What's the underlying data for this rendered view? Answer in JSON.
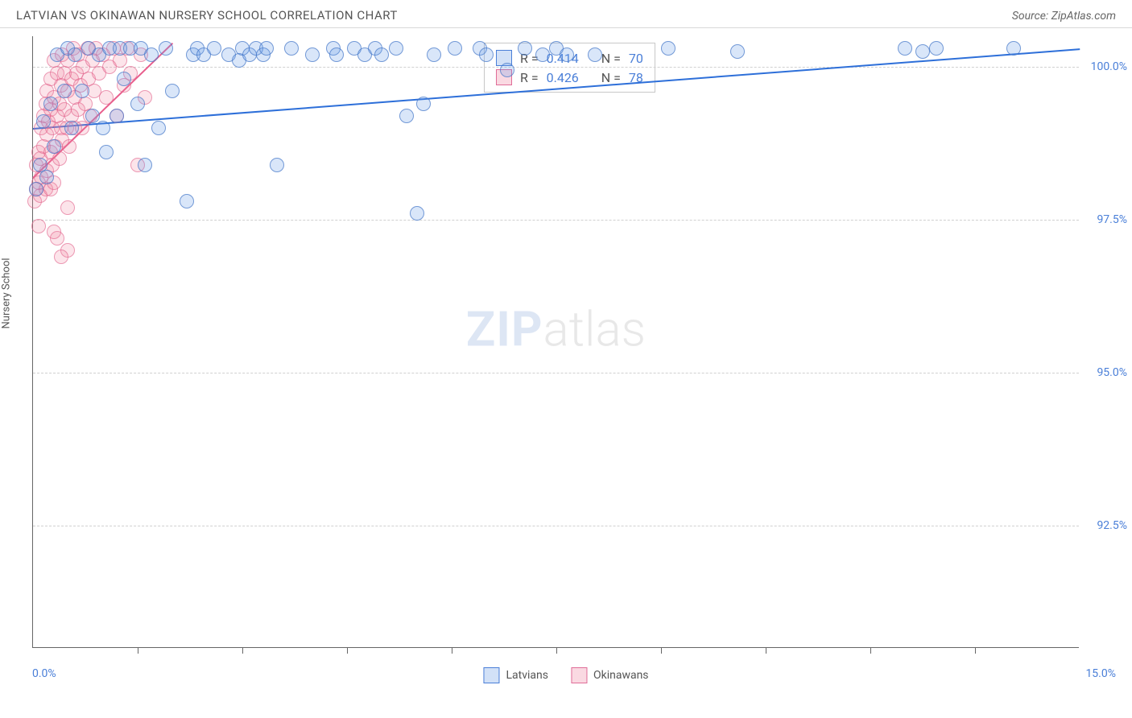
{
  "header": {
    "title": "LATVIAN VS OKINAWAN NURSERY SCHOOL CORRELATION CHART",
    "source": "Source: ZipAtlas.com"
  },
  "chart": {
    "y_axis_title": "Nursery School",
    "x_min_label": "0.0%",
    "x_max_label": "15.0%",
    "xlim": [
      0,
      15
    ],
    "ylim": [
      90.5,
      100.5
    ],
    "y_ticks": [
      {
        "value": 100.0,
        "label": "100.0%"
      },
      {
        "value": 97.5,
        "label": "97.5%"
      },
      {
        "value": 95.0,
        "label": "95.0%"
      },
      {
        "value": 92.5,
        "label": "92.5%"
      }
    ],
    "x_tick_positions": [
      1.5,
      3.0,
      4.5,
      6.0,
      7.5,
      9.0,
      10.5,
      12.0,
      13.5
    ],
    "grid_color": "#d0d0d0",
    "background_color": "#ffffff",
    "marker_radius": 9,
    "series": {
      "latvians": {
        "label": "Latvians",
        "color_fill": "rgba(105,155,230,0.25)",
        "color_stroke": "#4a7fd8",
        "r_value": "0.414",
        "n_value": "70",
        "trend": {
          "x1": 0.0,
          "y1": 99.0,
          "x2": 15.0,
          "y2": 100.3,
          "color": "#2d6fd9",
          "width": 2
        },
        "points": [
          [
            0.05,
            98.0
          ],
          [
            0.1,
            98.4
          ],
          [
            0.15,
            99.1
          ],
          [
            0.2,
            98.2
          ],
          [
            0.25,
            99.4
          ],
          [
            0.3,
            98.7
          ],
          [
            0.35,
            100.2
          ],
          [
            0.45,
            99.6
          ],
          [
            0.5,
            100.3
          ],
          [
            0.55,
            99.0
          ],
          [
            0.6,
            100.2
          ],
          [
            0.7,
            99.6
          ],
          [
            0.8,
            100.3
          ],
          [
            0.85,
            99.2
          ],
          [
            0.95,
            100.2
          ],
          [
            1.0,
            99.0
          ],
          [
            1.05,
            98.6
          ],
          [
            1.1,
            100.3
          ],
          [
            1.2,
            99.2
          ],
          [
            1.25,
            100.3
          ],
          [
            1.3,
            99.8
          ],
          [
            1.4,
            100.3
          ],
          [
            1.5,
            99.4
          ],
          [
            1.55,
            100.3
          ],
          [
            1.6,
            98.4
          ],
          [
            1.7,
            100.2
          ],
          [
            1.8,
            99.0
          ],
          [
            1.9,
            100.3
          ],
          [
            2.0,
            99.6
          ],
          [
            2.2,
            97.8
          ],
          [
            2.3,
            100.2
          ],
          [
            2.35,
            100.3
          ],
          [
            2.45,
            100.2
          ],
          [
            2.6,
            100.3
          ],
          [
            2.8,
            100.2
          ],
          [
            2.95,
            100.1
          ],
          [
            3.0,
            100.3
          ],
          [
            3.1,
            100.2
          ],
          [
            3.2,
            100.3
          ],
          [
            3.3,
            100.2
          ],
          [
            3.35,
            100.3
          ],
          [
            3.5,
            98.4
          ],
          [
            3.7,
            100.3
          ],
          [
            4.0,
            100.2
          ],
          [
            4.3,
            100.3
          ],
          [
            4.35,
            100.2
          ],
          [
            4.6,
            100.3
          ],
          [
            4.75,
            100.2
          ],
          [
            4.9,
            100.3
          ],
          [
            5.0,
            100.2
          ],
          [
            5.2,
            100.3
          ],
          [
            5.35,
            99.2
          ],
          [
            5.5,
            97.6
          ],
          [
            5.6,
            99.4
          ],
          [
            5.75,
            100.2
          ],
          [
            6.05,
            100.3
          ],
          [
            6.4,
            100.3
          ],
          [
            6.8,
            99.95
          ],
          [
            7.05,
            100.3
          ],
          [
            7.3,
            100.2
          ],
          [
            7.5,
            100.3
          ],
          [
            7.65,
            100.2
          ],
          [
            8.05,
            100.2
          ],
          [
            9.1,
            100.3
          ],
          [
            10.1,
            100.25
          ],
          [
            12.5,
            100.3
          ],
          [
            12.75,
            100.25
          ],
          [
            12.95,
            100.3
          ],
          [
            14.05,
            100.3
          ],
          [
            6.5,
            100.2
          ]
        ]
      },
      "okinawans": {
        "label": "Okinawans",
        "color_fill": "rgba(240,130,160,0.22)",
        "color_stroke": "#e06d98",
        "r_value": "0.426",
        "n_value": "78",
        "trend": {
          "x1": 0.0,
          "y1": 98.2,
          "x2": 2.0,
          "y2": 100.4,
          "color": "#e85d8c",
          "width": 2
        },
        "points": [
          [
            0.02,
            97.8
          ],
          [
            0.05,
            98.0
          ],
          [
            0.05,
            98.4
          ],
          [
            0.08,
            98.1
          ],
          [
            0.08,
            98.6
          ],
          [
            0.1,
            97.9
          ],
          [
            0.1,
            98.5
          ],
          [
            0.12,
            99.0
          ],
          [
            0.12,
            98.2
          ],
          [
            0.15,
            98.7
          ],
          [
            0.15,
            99.2
          ],
          [
            0.18,
            98.0
          ],
          [
            0.18,
            99.4
          ],
          [
            0.2,
            98.3
          ],
          [
            0.2,
            99.6
          ],
          [
            0.2,
            98.9
          ],
          [
            0.22,
            99.1
          ],
          [
            0.25,
            98.0
          ],
          [
            0.25,
            98.6
          ],
          [
            0.25,
            99.3
          ],
          [
            0.25,
            99.8
          ],
          [
            0.28,
            98.4
          ],
          [
            0.28,
            99.0
          ],
          [
            0.3,
            98.1
          ],
          [
            0.3,
            99.5
          ],
          [
            0.3,
            100.1
          ],
          [
            0.32,
            98.7
          ],
          [
            0.35,
            99.2
          ],
          [
            0.35,
            99.9
          ],
          [
            0.38,
            98.5
          ],
          [
            0.38,
            99.4
          ],
          [
            0.4,
            99.0
          ],
          [
            0.4,
            99.7
          ],
          [
            0.42,
            98.8
          ],
          [
            0.42,
            100.2
          ],
          [
            0.45,
            99.3
          ],
          [
            0.45,
            99.9
          ],
          [
            0.48,
            99.0
          ],
          [
            0.5,
            99.6
          ],
          [
            0.5,
            100.1
          ],
          [
            0.52,
            98.7
          ],
          [
            0.55,
            99.2
          ],
          [
            0.55,
            99.8
          ],
          [
            0.58,
            100.3
          ],
          [
            0.6,
            99.0
          ],
          [
            0.6,
            99.5
          ],
          [
            0.62,
            99.9
          ],
          [
            0.65,
            99.3
          ],
          [
            0.65,
            100.2
          ],
          [
            0.68,
            99.7
          ],
          [
            0.7,
            99.0
          ],
          [
            0.72,
            100.0
          ],
          [
            0.75,
            99.4
          ],
          [
            0.78,
            100.3
          ],
          [
            0.8,
            99.8
          ],
          [
            0.82,
            99.2
          ],
          [
            0.85,
            100.1
          ],
          [
            0.88,
            99.6
          ],
          [
            0.9,
            100.3
          ],
          [
            0.95,
            99.9
          ],
          [
            1.0,
            100.2
          ],
          [
            1.05,
            99.5
          ],
          [
            1.1,
            100.0
          ],
          [
            1.15,
            100.3
          ],
          [
            1.2,
            99.2
          ],
          [
            1.25,
            100.1
          ],
          [
            1.3,
            99.7
          ],
          [
            1.35,
            100.3
          ],
          [
            1.4,
            99.9
          ],
          [
            1.5,
            98.4
          ],
          [
            1.55,
            100.2
          ],
          [
            1.6,
            99.5
          ],
          [
            0.35,
            97.2
          ],
          [
            0.5,
            97.0
          ],
          [
            0.4,
            96.9
          ],
          [
            0.08,
            97.4
          ],
          [
            0.5,
            97.7
          ],
          [
            0.3,
            97.3
          ]
        ]
      }
    },
    "watermark": {
      "zip": "ZIP",
      "atlas": "atlas"
    },
    "stats_labels": {
      "r": "R =",
      "n": "N ="
    }
  }
}
